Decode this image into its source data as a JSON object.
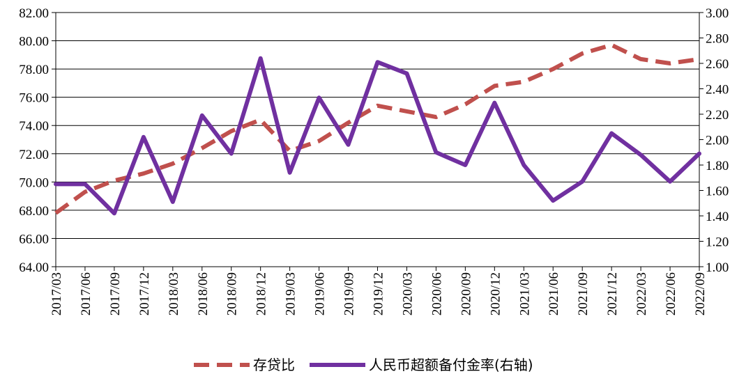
{
  "chart_data": {
    "type": "line",
    "x": [
      "2017/03",
      "2017/06",
      "2017/09",
      "2017/12",
      "2018/03",
      "2018/06",
      "2018/09",
      "2018/12",
      "2019/03",
      "2019/06",
      "2019/09",
      "2019/12",
      "2020/03",
      "2020/06",
      "2020/09",
      "2020/12",
      "2021/03",
      "2021/06",
      "2021/09",
      "2021/12",
      "2022/03",
      "2022/06",
      "2022/09"
    ],
    "left_axis": {
      "ylim": [
        64,
        82
      ],
      "ticks": [
        "64.00",
        "66.00",
        "68.00",
        "70.00",
        "72.00",
        "74.00",
        "76.00",
        "78.00",
        "80.00",
        "82.00"
      ]
    },
    "right_axis": {
      "ylim": [
        1.0,
        3.0
      ],
      "ticks": [
        "1.00",
        "1.20",
        "1.40",
        "1.60",
        "1.80",
        "2.00",
        "2.20",
        "2.40",
        "2.60",
        "2.80",
        "3.00"
      ]
    },
    "grid": true,
    "legend_position": "bottom",
    "series": [
      {
        "name": "存贷比",
        "axis": "left",
        "style": "dashed",
        "color": "#c0504d",
        "values": [
          67.8,
          69.3,
          70.1,
          70.6,
          71.3,
          72.4,
          73.6,
          74.4,
          72.2,
          72.9,
          74.2,
          75.4,
          75.0,
          74.6,
          75.5,
          76.8,
          77.1,
          78.0,
          79.1,
          79.7,
          78.7,
          78.4,
          78.7
        ]
      },
      {
        "name": "人民币超额备付金率(右轴)",
        "axis": "right",
        "style": "solid",
        "color": "#7030a0",
        "values": [
          1.65,
          1.65,
          1.42,
          2.02,
          1.51,
          2.19,
          1.89,
          2.64,
          1.74,
          2.33,
          1.96,
          2.61,
          2.52,
          1.9,
          1.8,
          2.29,
          1.8,
          1.52,
          1.67,
          2.05,
          1.88,
          1.67,
          1.89
        ]
      }
    ]
  }
}
